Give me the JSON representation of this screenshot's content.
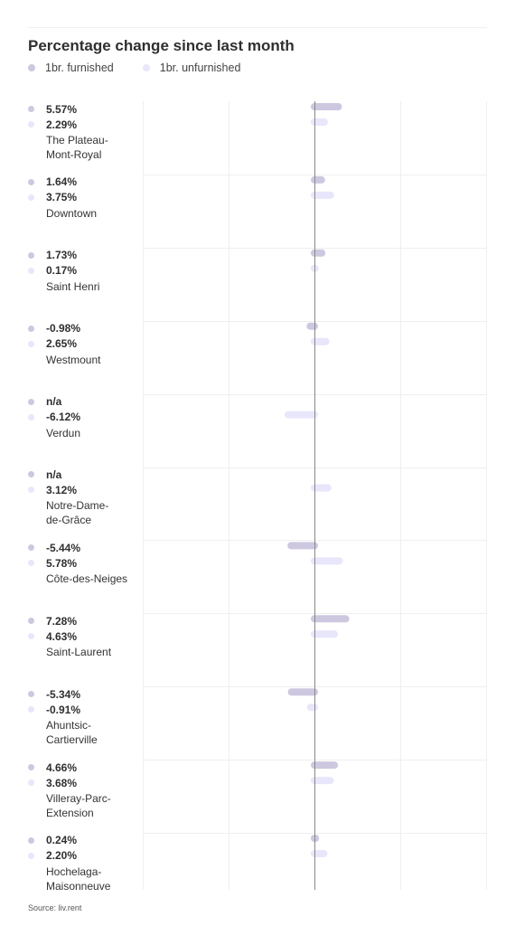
{
  "chart_data": {
    "type": "bar",
    "orientation": "horizontal",
    "title": "Percentage change since last month",
    "legend_position": "top-left",
    "grid": true,
    "series": [
      {
        "name": "1br. furnished",
        "color": "#cdc8e0",
        "values": [
          5.57,
          1.64,
          1.73,
          -0.98,
          null,
          null,
          -5.44,
          7.28,
          -5.34,
          4.66,
          0.24
        ],
        "labels": [
          "5.57%",
          "1.64%",
          "1.73%",
          "-0.98%",
          "n/a",
          "n/a",
          "-5.44%",
          "7.28%",
          "-5.34%",
          "4.66%",
          "0.24%"
        ]
      },
      {
        "name": "1br. unfurnished",
        "color": "#e8e6fb",
        "values": [
          2.29,
          3.75,
          0.17,
          2.65,
          -6.12,
          3.12,
          5.78,
          4.63,
          -0.91,
          3.68,
          2.2
        ],
        "labels": [
          "2.29%",
          "3.75%",
          "0.17%",
          "2.65%",
          "-6.12%",
          "3.12%",
          "5.78%",
          "4.63%",
          "-0.91%",
          "3.68%",
          "2.20%"
        ]
      }
    ],
    "categories": [
      [
        "The Plateau-",
        "Mont-Royal"
      ],
      [
        "Downtown"
      ],
      [
        "Saint Henri"
      ],
      [
        "Westmount"
      ],
      [
        "Verdun"
      ],
      [
        "Notre-Dame-",
        "de-Grâce"
      ],
      [
        "Côte-des-Neiges"
      ],
      [
        "Saint-Laurent"
      ],
      [
        "Ahuntsic-",
        "Cartierville"
      ],
      [
        "Villeray-Parc-",
        "Extension"
      ],
      [
        "Hochelaga-",
        "Maisonneuve"
      ]
    ],
    "xlim": [
      -30,
      30
    ]
  },
  "source": "Source: liv.rent"
}
